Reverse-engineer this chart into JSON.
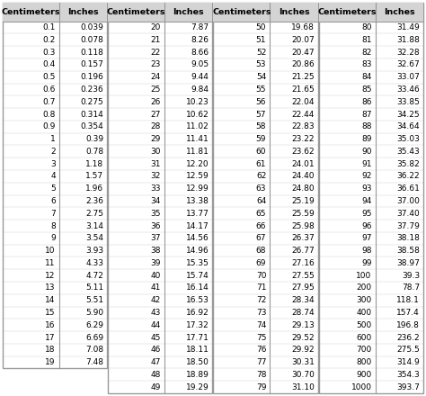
{
  "columns": [
    {
      "rows": [
        [
          "0.1",
          "0.039"
        ],
        [
          "0.2",
          "0.078"
        ],
        [
          "0.3",
          "0.118"
        ],
        [
          "0.4",
          "0.157"
        ],
        [
          "0.5",
          "0.196"
        ],
        [
          "0.6",
          "0.236"
        ],
        [
          "0.7",
          "0.275"
        ],
        [
          "0.8",
          "0.314"
        ],
        [
          "0.9",
          "0.354"
        ],
        [
          "1",
          "0.39"
        ],
        [
          "2",
          "0.78"
        ],
        [
          "3",
          "1.18"
        ],
        [
          "4",
          "1.57"
        ],
        [
          "5",
          "1.96"
        ],
        [
          "6",
          "2.36"
        ],
        [
          "7",
          "2.75"
        ],
        [
          "8",
          "3.14"
        ],
        [
          "9",
          "3.54"
        ],
        [
          "10",
          "3.93"
        ],
        [
          "11",
          "4.33"
        ],
        [
          "12",
          "4.72"
        ],
        [
          "13",
          "5.11"
        ],
        [
          "14",
          "5.51"
        ],
        [
          "15",
          "5.90"
        ],
        [
          "16",
          "6.29"
        ],
        [
          "17",
          "6.69"
        ],
        [
          "18",
          "7.08"
        ],
        [
          "19",
          "7.48"
        ]
      ]
    },
    {
      "rows": [
        [
          "20",
          "7.87"
        ],
        [
          "21",
          "8.26"
        ],
        [
          "22",
          "8.66"
        ],
        [
          "23",
          "9.05"
        ],
        [
          "24",
          "9.44"
        ],
        [
          "25",
          "9.84"
        ],
        [
          "26",
          "10.23"
        ],
        [
          "27",
          "10.62"
        ],
        [
          "28",
          "11.02"
        ],
        [
          "29",
          "11.41"
        ],
        [
          "30",
          "11.81"
        ],
        [
          "31",
          "12.20"
        ],
        [
          "32",
          "12.59"
        ],
        [
          "33",
          "12.99"
        ],
        [
          "34",
          "13.38"
        ],
        [
          "35",
          "13.77"
        ],
        [
          "36",
          "14.17"
        ],
        [
          "37",
          "14.56"
        ],
        [
          "38",
          "14.96"
        ],
        [
          "39",
          "15.35"
        ],
        [
          "40",
          "15.74"
        ],
        [
          "41",
          "16.14"
        ],
        [
          "42",
          "16.53"
        ],
        [
          "43",
          "16.92"
        ],
        [
          "44",
          "17.32"
        ],
        [
          "45",
          "17.71"
        ],
        [
          "46",
          "18.11"
        ],
        [
          "47",
          "18.50"
        ],
        [
          "48",
          "18.89"
        ],
        [
          "49",
          "19.29"
        ]
      ]
    },
    {
      "rows": [
        [
          "50",
          "19.68"
        ],
        [
          "51",
          "20.07"
        ],
        [
          "52",
          "20.47"
        ],
        [
          "53",
          "20.86"
        ],
        [
          "54",
          "21.25"
        ],
        [
          "55",
          "21.65"
        ],
        [
          "56",
          "22.04"
        ],
        [
          "57",
          "22.44"
        ],
        [
          "58",
          "22.83"
        ],
        [
          "59",
          "23.22"
        ],
        [
          "60",
          "23.62"
        ],
        [
          "61",
          "24.01"
        ],
        [
          "62",
          "24.40"
        ],
        [
          "63",
          "24.80"
        ],
        [
          "64",
          "25.19"
        ],
        [
          "65",
          "25.59"
        ],
        [
          "66",
          "25.98"
        ],
        [
          "67",
          "26.37"
        ],
        [
          "68",
          "26.77"
        ],
        [
          "69",
          "27.16"
        ],
        [
          "70",
          "27.55"
        ],
        [
          "71",
          "27.95"
        ],
        [
          "72",
          "28.34"
        ],
        [
          "73",
          "28.74"
        ],
        [
          "74",
          "29.13"
        ],
        [
          "75",
          "29.52"
        ],
        [
          "76",
          "29.92"
        ],
        [
          "77",
          "30.31"
        ],
        [
          "78",
          "30.70"
        ],
        [
          "79",
          "31.10"
        ]
      ]
    },
    {
      "rows": [
        [
          "80",
          "31.49"
        ],
        [
          "81",
          "31.88"
        ],
        [
          "82",
          "32.28"
        ],
        [
          "83",
          "32.67"
        ],
        [
          "84",
          "33.07"
        ],
        [
          "85",
          "33.46"
        ],
        [
          "86",
          "33.85"
        ],
        [
          "87",
          "34.25"
        ],
        [
          "88",
          "34.64"
        ],
        [
          "89",
          "35.03"
        ],
        [
          "90",
          "35.43"
        ],
        [
          "91",
          "35.82"
        ],
        [
          "92",
          "36.22"
        ],
        [
          "93",
          "36.61"
        ],
        [
          "94",
          "37.00"
        ],
        [
          "95",
          "37.40"
        ],
        [
          "96",
          "37.79"
        ],
        [
          "97",
          "38.18"
        ],
        [
          "98",
          "38.58"
        ],
        [
          "99",
          "38.97"
        ],
        [
          "100",
          "39.3"
        ],
        [
          "200",
          "78.7"
        ],
        [
          "300",
          "118.1"
        ],
        [
          "400",
          "157.4"
        ],
        [
          "500",
          "196.8"
        ],
        [
          "600",
          "236.2"
        ],
        [
          "700",
          "275.5"
        ],
        [
          "800",
          "314.9"
        ],
        [
          "900",
          "354.3"
        ],
        [
          "1000",
          "393.7"
        ]
      ]
    }
  ],
  "header_cm": "Centimeters",
  "header_in": "Inches",
  "bg_color": "#ffffff",
  "header_bg": "#d4d4d4",
  "border_color": "#999999",
  "text_color": "#000000",
  "header_fontsize": 6.8,
  "data_fontsize": 6.5,
  "fig_width": 4.74,
  "fig_height": 4.4,
  "dpi": 100
}
